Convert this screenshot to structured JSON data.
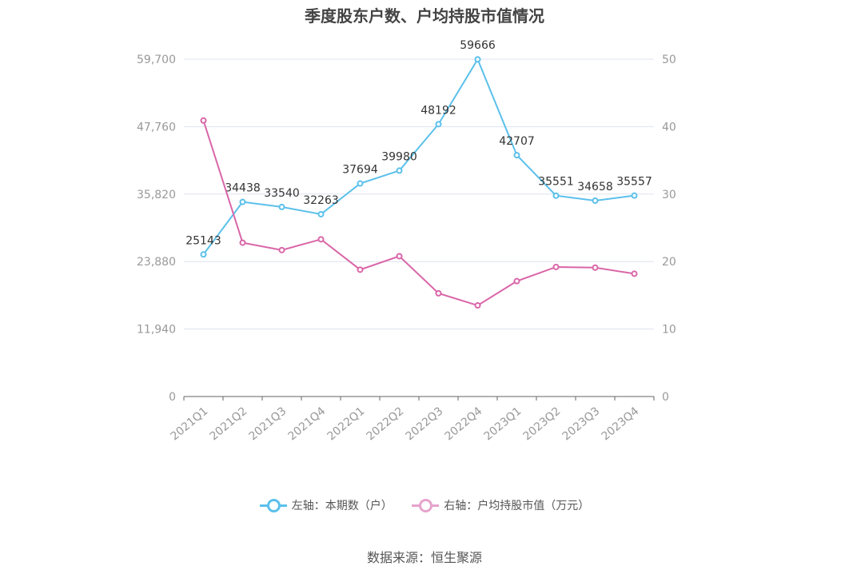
{
  "title": "季度股东户数、户均持股市值情况",
  "source": "数据来源：恒生聚源",
  "chart_data": {
    "type": "line",
    "categories": [
      "2021Q1",
      "2021Q2",
      "2021Q3",
      "2021Q4",
      "2022Q1",
      "2022Q2",
      "2022Q3",
      "2022Q4",
      "2023Q1",
      "2023Q2",
      "2023Q3",
      "2023Q4"
    ],
    "y_left": {
      "ticks": [
        "0",
        "11,940",
        "23,880",
        "35,820",
        "47,760",
        "59,700"
      ],
      "min": 0,
      "max": 59700
    },
    "y_right": {
      "ticks": [
        "0",
        "10",
        "20",
        "30",
        "40",
        "50"
      ],
      "min": 0,
      "max": 50
    },
    "grid": true,
    "legend_position": "bottom",
    "series": [
      {
        "name": "左轴：本期数（户）",
        "axis": "left",
        "color": "#5bc0eb",
        "values": [
          25143,
          34438,
          33540,
          32263,
          37694,
          39980,
          48192,
          59666,
          42707,
          35551,
          34658,
          35557
        ],
        "labels": [
          "25143",
          "34438",
          "33540",
          "32263",
          "37694",
          "39980",
          "48192",
          "59666",
          "42707",
          "35551",
          "34658",
          "35557"
        ]
      },
      {
        "name": "右轴：户均持股市值（万元）",
        "axis": "right",
        "color": "#d966a8",
        "values": [
          40.9,
          22.8,
          21.7,
          23.3,
          18.8,
          20.8,
          15.3,
          13.5,
          17.1,
          19.2,
          19.1,
          18.2
        ]
      }
    ]
  },
  "colors": {
    "grid": "#dde3f0",
    "axis": "#666666",
    "left_series": "#5bc0eb",
    "right_series": "#d966a8"
  }
}
